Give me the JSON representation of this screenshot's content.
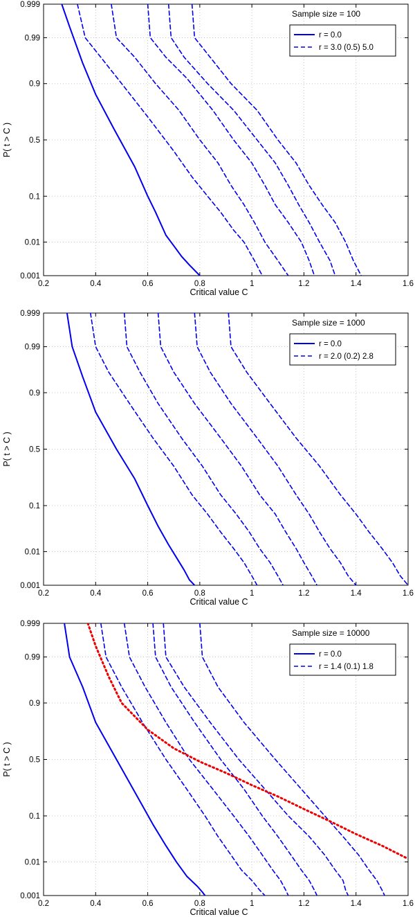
{
  "colors": {
    "series": "#0000ee",
    "overlay": "#ee0000",
    "grid": "#bbbbbb",
    "axis": "#000000"
  },
  "chart_data": [
    {
      "type": "line",
      "title": "Sample size = 100",
      "xlabel": "Critical value C",
      "ylabel": "P( t > C )",
      "xlim": [
        0.2,
        1.6
      ],
      "xticks": [
        0.2,
        0.4,
        0.6,
        0.8,
        1,
        1.2,
        1.4,
        1.6
      ],
      "xtick_labels": [
        "0.2",
        "0.4",
        "0.6",
        "0.8",
        "1",
        "1.2",
        "1.4",
        "1.6"
      ],
      "yscale": "probability",
      "ylim": [
        0.001,
        0.999
      ],
      "yticks": [
        0.001,
        0.01,
        0.1,
        0.5,
        0.9,
        0.99,
        0.999
      ],
      "ytick_labels": [
        "0.001",
        "0.01",
        "0.1",
        "0.5",
        "0.9",
        "0.99",
        "0.999"
      ],
      "grid": true,
      "legend": {
        "placement": "top-right",
        "entries": [
          {
            "label": "r = 0.0",
            "style": "solid"
          },
          {
            "label": "r = 3.0 (0.5) 5.0",
            "style": "dashed"
          }
        ]
      },
      "series": [
        {
          "name": "r = 0.0",
          "style": "solid",
          "x": [
            0.27,
            0.3,
            0.35,
            0.4,
            0.47,
            0.55,
            0.6,
            0.63,
            0.67,
            0.7,
            0.73,
            0.76,
            0.8
          ],
          "y": [
            0.999,
            0.995,
            0.96,
            0.85,
            0.6,
            0.27,
            0.1,
            0.05,
            0.015,
            0.008,
            0.004,
            0.0022,
            0.001
          ]
        },
        {
          "name": "r = 3.0",
          "style": "dashed",
          "x": [
            0.33,
            0.36,
            0.42,
            0.5,
            0.6,
            0.7,
            0.77,
            0.83,
            0.88,
            0.93,
            0.97,
            1.01,
            1.04
          ],
          "y": [
            0.999,
            0.99,
            0.97,
            0.9,
            0.7,
            0.4,
            0.2,
            0.1,
            0.05,
            0.02,
            0.01,
            0.003,
            0.001
          ]
        },
        {
          "name": "r = 3.5",
          "style": "dashed",
          "x": [
            0.46,
            0.48,
            0.55,
            0.63,
            0.72,
            0.8,
            0.87,
            0.92,
            0.97,
            1.01,
            1.05,
            1.1,
            1.14
          ],
          "y": [
            0.999,
            0.99,
            0.97,
            0.9,
            0.75,
            0.5,
            0.3,
            0.15,
            0.07,
            0.03,
            0.01,
            0.003,
            0.001
          ]
        },
        {
          "name": "r = 4.0",
          "style": "dashed",
          "x": [
            0.6,
            0.61,
            0.67,
            0.75,
            0.85,
            0.93,
            1.0,
            1.05,
            1.09,
            1.14,
            1.19,
            1.22,
            1.24
          ],
          "y": [
            0.999,
            0.99,
            0.97,
            0.92,
            0.75,
            0.5,
            0.3,
            0.15,
            0.07,
            0.03,
            0.01,
            0.003,
            0.001
          ]
        },
        {
          "name": "r = 4.5",
          "style": "dashed",
          "x": [
            0.68,
            0.69,
            0.74,
            0.83,
            0.93,
            1.02,
            1.09,
            1.14,
            1.18,
            1.22,
            1.26,
            1.3,
            1.32
          ],
          "y": [
            0.999,
            0.99,
            0.97,
            0.9,
            0.75,
            0.5,
            0.3,
            0.15,
            0.07,
            0.03,
            0.01,
            0.003,
            0.001
          ]
        },
        {
          "name": "r = 5.0",
          "style": "dashed",
          "x": [
            0.77,
            0.78,
            0.84,
            0.92,
            1.02,
            1.1,
            1.17,
            1.22,
            1.27,
            1.32,
            1.36,
            1.39,
            1.42
          ],
          "y": [
            0.999,
            0.99,
            0.97,
            0.9,
            0.75,
            0.5,
            0.3,
            0.15,
            0.07,
            0.03,
            0.01,
            0.003,
            0.001
          ]
        }
      ]
    },
    {
      "type": "line",
      "title": "Sample size = 1000",
      "xlabel": "Critical value C",
      "ylabel": "P( t > C )",
      "xlim": [
        0.2,
        1.6
      ],
      "xticks": [
        0.2,
        0.4,
        0.6,
        0.8,
        1,
        1.2,
        1.4,
        1.6
      ],
      "xtick_labels": [
        "0.2",
        "0.4",
        "0.6",
        "0.8",
        "1",
        "1.2",
        "1.4",
        "1.6"
      ],
      "yscale": "probability",
      "ylim": [
        0.001,
        0.999
      ],
      "yticks": [
        0.001,
        0.01,
        0.1,
        0.5,
        0.9,
        0.99,
        0.999
      ],
      "ytick_labels": [
        "0.001",
        "0.01",
        "0.1",
        "0.5",
        "0.9",
        "0.99",
        "0.999"
      ],
      "grid": true,
      "legend": {
        "placement": "top-right",
        "entries": [
          {
            "label": "r = 0.0",
            "style": "solid"
          },
          {
            "label": "r = 2.0 (0.2) 2.8",
            "style": "dashed"
          }
        ]
      },
      "series": [
        {
          "name": "r = 0.0",
          "style": "solid",
          "x": [
            0.29,
            0.31,
            0.35,
            0.4,
            0.48,
            0.55,
            0.6,
            0.64,
            0.68,
            0.71,
            0.74,
            0.76,
            0.78
          ],
          "y": [
            0.999,
            0.99,
            0.95,
            0.8,
            0.5,
            0.25,
            0.1,
            0.04,
            0.015,
            0.007,
            0.003,
            0.0015,
            0.001
          ]
        },
        {
          "name": "r = 2.0",
          "style": "dashed",
          "x": [
            0.38,
            0.4,
            0.45,
            0.53,
            0.62,
            0.7,
            0.77,
            0.83,
            0.88,
            0.93,
            0.97,
            1.0,
            1.02
          ],
          "y": [
            0.999,
            0.99,
            0.96,
            0.85,
            0.6,
            0.35,
            0.15,
            0.07,
            0.03,
            0.012,
            0.005,
            0.002,
            0.001
          ]
        },
        {
          "name": "r = 2.2",
          "style": "dashed",
          "x": [
            0.51,
            0.52,
            0.57,
            0.64,
            0.73,
            0.81,
            0.88,
            0.94,
            0.99,
            1.03,
            1.07,
            1.1,
            1.12
          ],
          "y": [
            0.999,
            0.99,
            0.96,
            0.85,
            0.6,
            0.35,
            0.15,
            0.07,
            0.03,
            0.012,
            0.005,
            0.002,
            0.001
          ]
        },
        {
          "name": "r = 2.4",
          "style": "dashed",
          "x": [
            0.64,
            0.65,
            0.7,
            0.78,
            0.88,
            0.96,
            1.03,
            1.09,
            1.13,
            1.17,
            1.2,
            1.23,
            1.25
          ],
          "y": [
            0.999,
            0.99,
            0.96,
            0.85,
            0.6,
            0.35,
            0.15,
            0.07,
            0.03,
            0.012,
            0.005,
            0.002,
            0.001
          ]
        },
        {
          "name": "r = 2.6",
          "style": "dashed",
          "x": [
            0.78,
            0.79,
            0.84,
            0.92,
            1.02,
            1.1,
            1.17,
            1.22,
            1.26,
            1.3,
            1.34,
            1.37,
            1.4
          ],
          "y": [
            0.999,
            0.99,
            0.96,
            0.85,
            0.6,
            0.35,
            0.15,
            0.07,
            0.03,
            0.012,
            0.005,
            0.002,
            0.001
          ]
        },
        {
          "name": "r = 2.8",
          "style": "dashed",
          "x": [
            0.91,
            0.92,
            0.98,
            1.07,
            1.17,
            1.26,
            1.34,
            1.4,
            1.45,
            1.5,
            1.54,
            1.57,
            1.6
          ],
          "y": [
            0.999,
            0.99,
            0.96,
            0.85,
            0.6,
            0.35,
            0.15,
            0.07,
            0.03,
            0.012,
            0.005,
            0.002,
            0.001
          ]
        }
      ]
    },
    {
      "type": "line",
      "title": "Sample size = 10000",
      "xlabel": "Critical value C",
      "ylabel": "P( t > C )",
      "xlim": [
        0.2,
        1.6
      ],
      "xticks": [
        0.2,
        0.4,
        0.6,
        0.8,
        1,
        1.2,
        1.4,
        1.6
      ],
      "xtick_labels": [
        "0.2",
        "0.4",
        "0.6",
        "0.8",
        "1",
        "1.2",
        "1.4",
        "1.6"
      ],
      "yscale": "probability",
      "ylim": [
        0.001,
        0.999
      ],
      "yticks": [
        0.001,
        0.01,
        0.1,
        0.5,
        0.9,
        0.99,
        0.999
      ],
      "ytick_labels": [
        "0.001",
        "0.01",
        "0.1",
        "0.5",
        "0.9",
        "0.99",
        "0.999"
      ],
      "grid": true,
      "legend": {
        "placement": "top-right",
        "entries": [
          {
            "label": "r = 0.0",
            "style": "solid"
          },
          {
            "label": "r = 1.4 (0.1) 1.8",
            "style": "dashed"
          }
        ]
      },
      "series": [
        {
          "name": "r = 0.0",
          "style": "solid",
          "x": [
            0.28,
            0.3,
            0.35,
            0.4,
            0.48,
            0.56,
            0.62,
            0.67,
            0.71,
            0.75,
            0.79,
            0.81,
            0.82
          ],
          "y": [
            0.999,
            0.99,
            0.95,
            0.8,
            0.5,
            0.2,
            0.07,
            0.025,
            0.01,
            0.004,
            0.002,
            0.0013,
            0.001
          ]
        },
        {
          "name": "r = 1.4",
          "style": "dashed",
          "x": [
            0.42,
            0.44,
            0.5,
            0.58,
            0.67,
            0.75,
            0.82,
            0.87,
            0.92,
            0.96,
            1.0,
            1.03,
            1.05
          ],
          "y": [
            0.999,
            0.99,
            0.95,
            0.8,
            0.5,
            0.25,
            0.1,
            0.04,
            0.015,
            0.006,
            0.003,
            0.0015,
            0.001
          ]
        },
        {
          "name": "r = 1.5",
          "style": "dashed",
          "x": [
            0.51,
            0.53,
            0.59,
            0.67,
            0.76,
            0.85,
            0.93,
            0.99,
            1.04,
            1.08,
            1.11,
            1.13,
            1.14
          ],
          "y": [
            0.999,
            0.99,
            0.95,
            0.8,
            0.5,
            0.25,
            0.1,
            0.04,
            0.015,
            0.006,
            0.003,
            0.0015,
            0.001
          ]
        },
        {
          "name": "r = 1.6",
          "style": "dashed",
          "x": [
            0.62,
            0.63,
            0.69,
            0.78,
            0.88,
            0.97,
            1.04,
            1.1,
            1.15,
            1.19,
            1.22,
            1.24,
            1.25
          ],
          "y": [
            0.999,
            0.99,
            0.95,
            0.8,
            0.5,
            0.25,
            0.1,
            0.04,
            0.015,
            0.006,
            0.003,
            0.0015,
            0.001
          ]
        },
        {
          "name": "r = 1.7",
          "style": "dashed",
          "x": [
            0.66,
            0.67,
            0.74,
            0.84,
            0.95,
            1.05,
            1.14,
            1.22,
            1.28,
            1.32,
            1.35,
            1.36,
            1.37
          ],
          "y": [
            0.999,
            0.99,
            0.95,
            0.8,
            0.5,
            0.25,
            0.1,
            0.04,
            0.015,
            0.006,
            0.003,
            0.0015,
            0.001
          ]
        },
        {
          "name": "r = 1.8",
          "style": "dashed",
          "x": [
            0.8,
            0.81,
            0.87,
            0.97,
            1.09,
            1.19,
            1.28,
            1.35,
            1.41,
            1.45,
            1.48,
            1.5,
            1.51
          ],
          "y": [
            0.999,
            0.99,
            0.95,
            0.8,
            0.5,
            0.25,
            0.1,
            0.04,
            0.015,
            0.006,
            0.003,
            0.0015,
            0.001
          ]
        },
        {
          "name": "overlay",
          "style": "dotted",
          "color": "overlay",
          "x": [
            0.37,
            0.4,
            0.45,
            0.5,
            0.6,
            0.7,
            0.8,
            0.9,
            1.0,
            1.1,
            1.2,
            1.3,
            1.4,
            1.5,
            1.6
          ],
          "y": [
            0.999,
            0.995,
            0.97,
            0.9,
            0.75,
            0.6,
            0.48,
            0.38,
            0.28,
            0.2,
            0.13,
            0.08,
            0.045,
            0.025,
            0.012
          ]
        }
      ]
    }
  ]
}
